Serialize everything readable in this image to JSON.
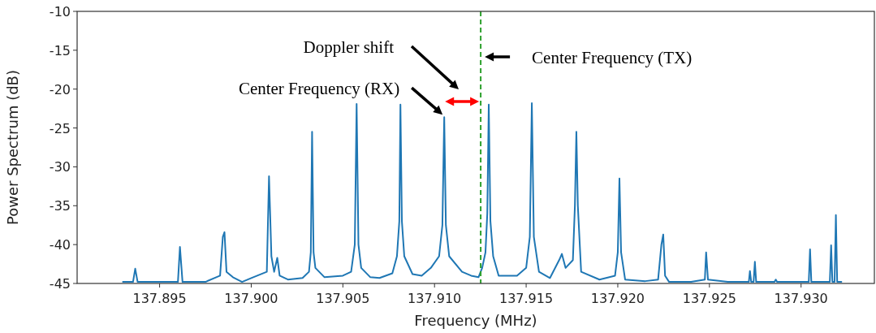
{
  "chart_data": {
    "type": "line",
    "xlabel": "Frequency (MHz)",
    "ylabel": "Power Spectrum (dB)",
    "xlim": [
      137.8905,
      137.934
    ],
    "ylim": [
      -45,
      -10
    ],
    "xticks": [
      {
        "value": 137.895,
        "label": "137.895"
      },
      {
        "value": 137.9,
        "label": "137.900"
      },
      {
        "value": 137.905,
        "label": "137.905"
      },
      {
        "value": 137.91,
        "label": "137.910"
      },
      {
        "value": 137.915,
        "label": "137.915"
      },
      {
        "value": 137.92,
        "label": "137.920"
      },
      {
        "value": 137.925,
        "label": "137.925"
      },
      {
        "value": 137.93,
        "label": "137.930"
      }
    ],
    "yticks": [
      -45,
      -40,
      -35,
      -30,
      -25,
      -20,
      -15,
      -10
    ],
    "grid": false,
    "line_style": "solid",
    "marker": "none",
    "series": [
      {
        "color": "#1f77b4",
        "x": [
          137.893,
          137.89355,
          137.89367,
          137.8938,
          137.895,
          137.896,
          137.89611,
          137.89625,
          137.8975,
          137.8983,
          137.89845,
          137.89854,
          137.89865,
          137.899,
          137.8995,
          137.9,
          137.90085,
          137.90097,
          137.9011,
          137.90125,
          137.90142,
          137.90155,
          137.902,
          137.9028,
          137.90315,
          137.90325,
          137.90332,
          137.9034,
          137.9035,
          137.904,
          137.905,
          137.90545,
          137.90565,
          137.90575,
          137.90585,
          137.906,
          137.9065,
          137.907,
          137.9077,
          137.90795,
          137.90808,
          137.90814,
          137.90822,
          137.90835,
          137.9088,
          137.9093,
          137.9098,
          137.91025,
          137.91043,
          137.91053,
          137.91062,
          137.9108,
          137.9115,
          137.912,
          137.9124,
          137.9126,
          137.91278,
          137.91288,
          137.91296,
          137.91305,
          137.9132,
          137.9135,
          137.9145,
          137.915,
          137.9152,
          137.91531,
          137.91542,
          137.9157,
          137.9163,
          137.9168,
          137.91695,
          137.91715,
          137.91755,
          137.91766,
          137.91774,
          137.91782,
          137.918,
          137.919,
          137.91985,
          137.92,
          137.92009,
          137.92018,
          137.9204,
          137.9215,
          137.9222,
          137.92238,
          137.92248,
          137.92258,
          137.9228,
          137.924,
          137.92475,
          137.92482,
          137.92492,
          137.926,
          137.92715,
          137.92721,
          137.92728,
          137.92741,
          137.92748,
          137.92755,
          137.92855,
          137.92862,
          137.92869,
          137.93042,
          137.93049,
          137.93056,
          137.93157,
          137.93164,
          137.93171,
          137.93183,
          137.9319,
          137.93197,
          137.9322
        ],
        "values": [
          -44.8,
          -44.8,
          -43.1,
          -44.8,
          -44.8,
          -44.8,
          -40.3,
          -44.8,
          -44.8,
          -44,
          -39,
          -38.4,
          -43.5,
          -44.2,
          -44.8,
          -44.3,
          -43.5,
          -31.2,
          -41.5,
          -43.5,
          -41.7,
          -44,
          -44.5,
          -44.3,
          -43.5,
          -41,
          -25.5,
          -41,
          -43,
          -44.2,
          -44,
          -43.5,
          -40,
          -21.9,
          -40,
          -43,
          -44.2,
          -44.3,
          -43.7,
          -41.5,
          -37,
          -22,
          -37,
          -41.5,
          -43.8,
          -44,
          -43,
          -41.5,
          -37.5,
          -23.6,
          -37.5,
          -41.5,
          -43.5,
          -44,
          -44.2,
          -43,
          -41,
          -36,
          -22,
          -37,
          -41.5,
          -44,
          -44,
          -43,
          -39,
          -21.8,
          -39,
          -43.5,
          -44.3,
          -42,
          -41.2,
          -43,
          -42,
          -35,
          -25.5,
          -35,
          -43.5,
          -44.5,
          -44,
          -41,
          -31.5,
          -41,
          -44.5,
          -44.7,
          -44.5,
          -40,
          -38.7,
          -44,
          -44.8,
          -44.8,
          -44.5,
          -41,
          -44.5,
          -44.8,
          -44.8,
          -43.4,
          -44.8,
          -44.8,
          -42.2,
          -44.8,
          -44.8,
          -44.5,
          -44.8,
          -44.8,
          -40.6,
          -44.8,
          -44.8,
          -40.1,
          -44.8,
          -44.8,
          -36.2,
          -44.8,
          -44.8
        ]
      }
    ],
    "ref_lines": [
      {
        "axis": "x",
        "value": 137.91252,
        "label": "Center Frequency (TX)",
        "color": "#2ca02c",
        "line_style": "dashed"
      }
    ],
    "annotations": [
      "Doppler shift",
      {
        "text": "Center Frequency (RX)",
        "x": 137.91053,
        "y": -23.6
      }
    ]
  }
}
